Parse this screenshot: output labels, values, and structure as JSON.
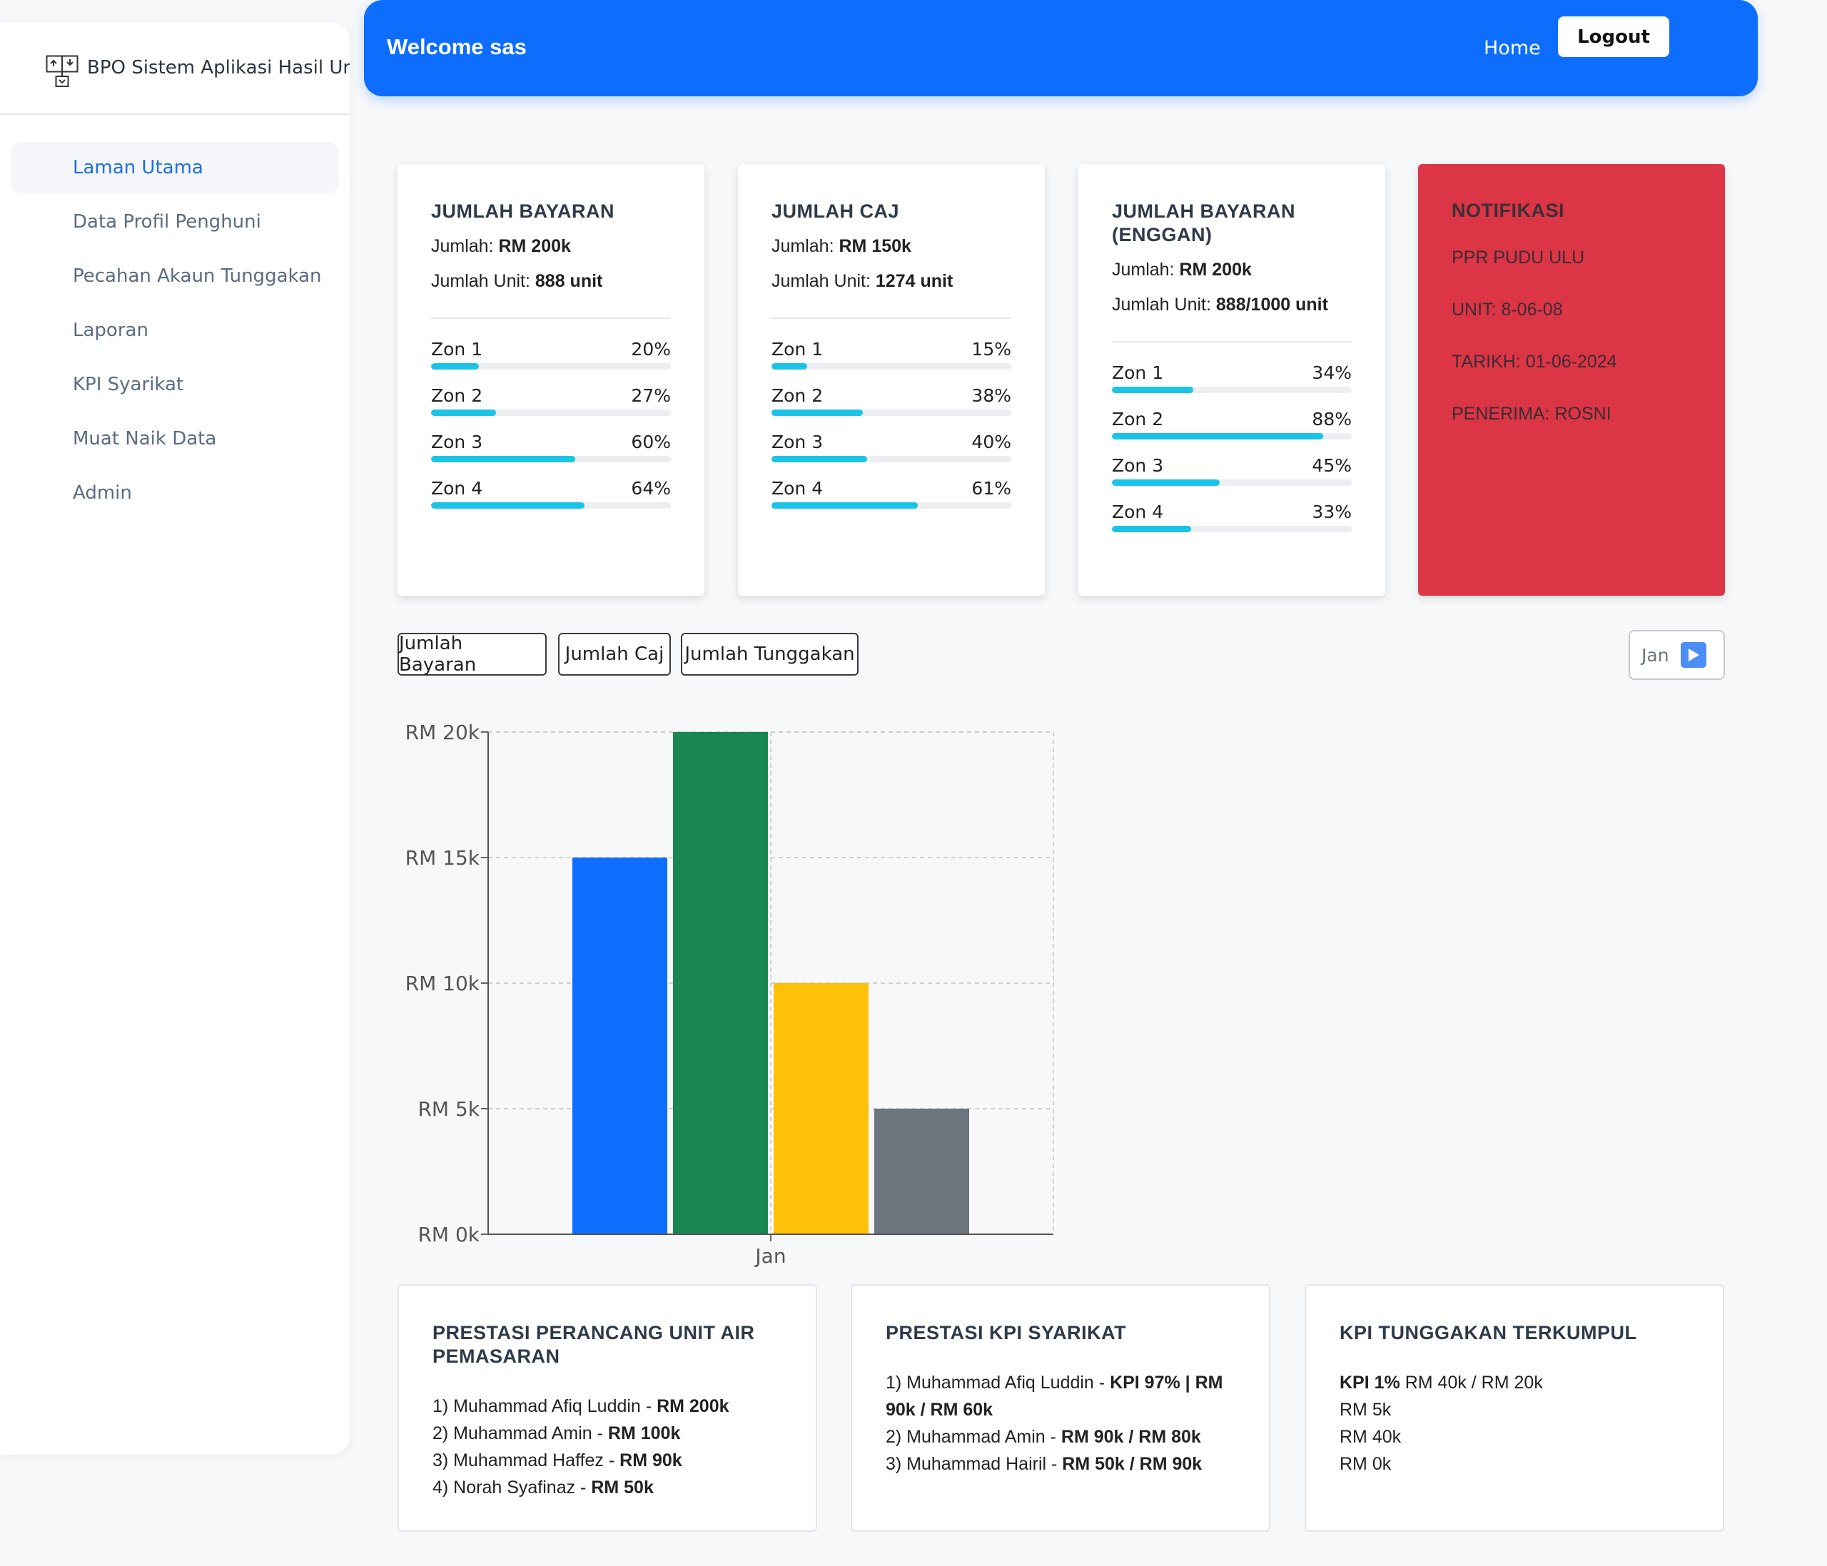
{
  "brand": {
    "title": "BPO Sistem Aplikasi Hasil Unit Air Pemasaran",
    "icon": "sitemap-icon"
  },
  "sidebar": {
    "items": [
      {
        "label": "Laman Utama",
        "active": true
      },
      {
        "label": "Data Profil Penghuni",
        "active": false
      },
      {
        "label": "Pecahan Akaun Tunggakan",
        "active": false
      },
      {
        "label": "Laporan",
        "active": false
      },
      {
        "label": "KPI Syarikat",
        "active": false
      },
      {
        "label": "Muat Naik Data",
        "active": false
      },
      {
        "label": "Admin",
        "active": false
      }
    ]
  },
  "header": {
    "welcome": "Welcome sas",
    "home": "Home",
    "logout": "Logout",
    "color": "#0d6efd"
  },
  "cards": [
    {
      "title": "JUMLAH BAYARAN",
      "amount_label": "Jumlah: ",
      "amount": "RM 200k",
      "units_label": "Jumlah Unit: ",
      "units": "888 unit",
      "zones": [
        {
          "label": "Zon 1",
          "pct_text": "20%",
          "pct": 20
        },
        {
          "label": "Zon 2",
          "pct_text": "27%",
          "pct": 27
        },
        {
          "label": "Zon 3",
          "pct_text": "60%",
          "pct": 60
        },
        {
          "label": "Zon 4",
          "pct_text": "64%",
          "pct": 64
        }
      ]
    },
    {
      "title": "JUMLAH CAJ",
      "amount_label": "Jumlah: ",
      "amount": "RM 150k",
      "units_label": "Jumlah Unit: ",
      "units": "1274 unit",
      "zones": [
        {
          "label": "Zon 1",
          "pct_text": "15%",
          "pct": 15
        },
        {
          "label": "Zon 2",
          "pct_text": "38%",
          "pct": 38
        },
        {
          "label": "Zon 3",
          "pct_text": "40%",
          "pct": 40
        },
        {
          "label": "Zon 4",
          "pct_text": "61%",
          "pct": 61
        }
      ]
    },
    {
      "title": "JUMLAH BAYARAN (ENGGAN)",
      "amount_label": "Jumlah: ",
      "amount": "RM 200k",
      "units_label": "Jumlah Unit: ",
      "units": "888/1000 unit",
      "zones": [
        {
          "label": "Zon 1",
          "pct_text": "34%",
          "pct": 34
        },
        {
          "label": "Zon 2",
          "pct_text": "88%",
          "pct": 88
        },
        {
          "label": "Zon 3",
          "pct_text": "45%",
          "pct": 45
        },
        {
          "label": "Zon 4",
          "pct_text": "33%",
          "pct": 33
        }
      ]
    }
  ],
  "notification": {
    "title": "NOTIFIKASI",
    "lines": [
      "PPR PUDU ULU",
      "UNIT: 8-06-08",
      "TARIKH: 01-06-2024",
      "PENERIMA: ROSNI"
    ],
    "color": "#dc3545"
  },
  "tabs": [
    {
      "label": "Jumlah Bayaran",
      "active": true
    },
    {
      "label": "Jumlah Caj",
      "active": false
    },
    {
      "label": "Jumlah Tunggakan",
      "active": false
    }
  ],
  "month_selector": {
    "label": "Jan",
    "icon": "play-icon"
  },
  "chart_data": {
    "type": "bar",
    "categories": [
      "Jan"
    ],
    "series": [
      {
        "values": [
          15000
        ],
        "color": "#0d6efd"
      },
      {
        "values": [
          20000
        ],
        "color": "#198754"
      },
      {
        "values": [
          10000
        ],
        "color": "#ffc107"
      },
      {
        "values": [
          5000
        ],
        "color": "#6c757d"
      }
    ],
    "yticks": [
      "RM 0k",
      "RM 5k",
      "RM 10k",
      "RM 15k",
      "RM 20k"
    ],
    "ylim": [
      0,
      20000
    ],
    "grid": true,
    "xlabel": "",
    "ylabel": "",
    "title": ""
  },
  "bottom_cards": [
    {
      "title": "PRESTASI PERANCANG UNIT AIR PEMASARAN",
      "rows": [
        {
          "text": "1) Muhammad Afiq Luddin - ",
          "bold": "RM 200k"
        },
        {
          "text": "2) Muhammad Amin - ",
          "bold": "RM 100k"
        },
        {
          "text": "3) Muhammad Haffez - ",
          "bold": "RM 90k"
        },
        {
          "text": "4) Norah Syafinaz - ",
          "bold": "RM 50k"
        }
      ]
    },
    {
      "title": "PRESTASI KPI SYARIKAT",
      "rows": [
        {
          "text": "1) Muhammad Afiq Luddin - ",
          "bold": "KPI 97% | RM 90k / RM 60k"
        },
        {
          "text": "2) Muhammad Amin - ",
          "bold": "RM 90k / RM 80k"
        },
        {
          "text": "3) Muhammad Hairil - ",
          "bold": "RM 50k / RM 90k"
        }
      ]
    },
    {
      "title": "KPI TUNGGAKAN TERKUMPUL",
      "rows": [
        {
          "bold_first": "KPI 1%",
          "text": " RM 40k / RM 20k"
        },
        {
          "text": "RM 5k"
        },
        {
          "text": "RM 40k"
        },
        {
          "text": "RM 0k"
        }
      ]
    }
  ]
}
